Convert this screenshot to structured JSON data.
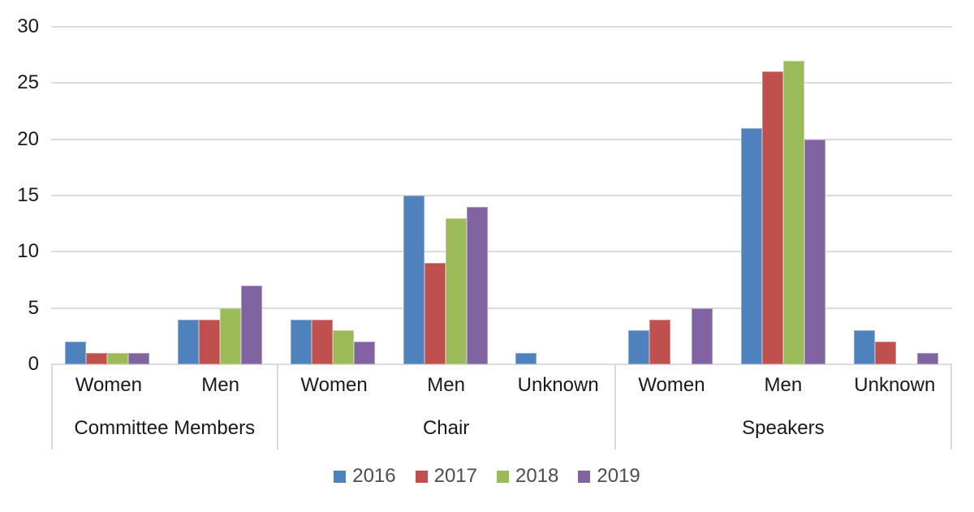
{
  "chart_data": {
    "type": "bar",
    "title": "",
    "xlabel": "",
    "ylabel": "",
    "y_axis": {
      "min": 0,
      "max": 30,
      "ticks": [
        0,
        5,
        10,
        15,
        20,
        25,
        30
      ]
    },
    "grid": true,
    "legend_position": "bottom",
    "groups": [
      {
        "label": "Committee Members",
        "categories": [
          "Women",
          "Men"
        ]
      },
      {
        "label": "Chair",
        "categories": [
          "Women",
          "Men",
          "Unknown"
        ]
      },
      {
        "label": "Speakers",
        "categories": [
          "Women",
          "Men",
          "Unknown"
        ]
      }
    ],
    "series": [
      {
        "name": "2016",
        "color": "#4F81BD",
        "values": [
          [
            2,
            4
          ],
          [
            4,
            15,
            1
          ],
          [
            3,
            21,
            3
          ]
        ]
      },
      {
        "name": "2017",
        "color": "#C0504D",
        "values": [
          [
            1,
            4
          ],
          [
            4,
            9,
            0
          ],
          [
            4,
            26,
            2
          ]
        ]
      },
      {
        "name": "2018",
        "color": "#9BBB59",
        "values": [
          [
            1,
            5
          ],
          [
            3,
            13,
            0
          ],
          [
            0,
            27,
            0
          ]
        ]
      },
      {
        "name": "2019",
        "color": "#8064A2",
        "values": [
          [
            1,
            7
          ],
          [
            2,
            14,
            0
          ],
          [
            5,
            20,
            1
          ]
        ]
      }
    ],
    "colors": {
      "gridline": "#dcdcdc",
      "axis_text": "#1a1a1a",
      "legend_text": "#4d4d4d",
      "background": "#ffffff"
    }
  }
}
